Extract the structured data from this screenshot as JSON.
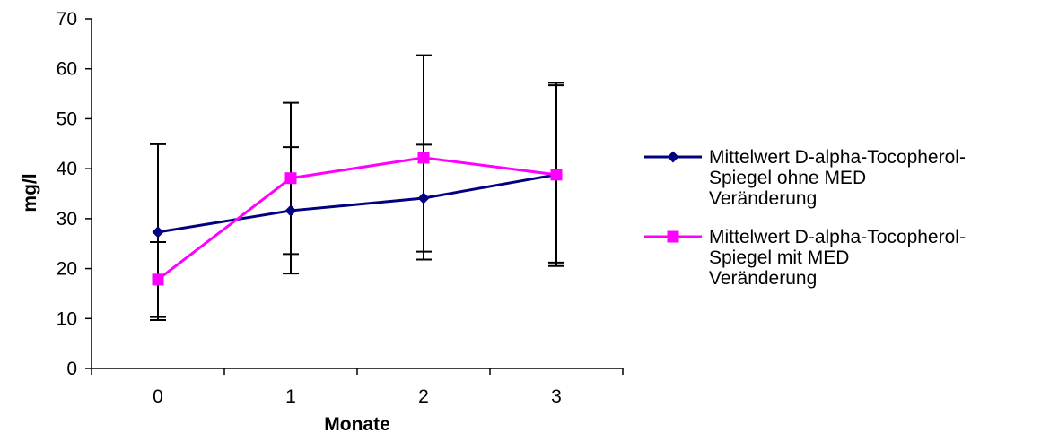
{
  "chart_data": {
    "type": "line",
    "title": "",
    "xlabel": "Monate",
    "ylabel": "mg/l",
    "categories": [
      "0",
      "1",
      "2",
      "3"
    ],
    "ylim": [
      0,
      70
    ],
    "yticks": [
      0,
      10,
      20,
      30,
      40,
      50,
      60,
      70
    ],
    "grid": false,
    "legend_position": "right",
    "series": [
      {
        "name": "Mittelwert D-alpha-Tocopherol-Spiegel ohne MED Veränderung",
        "legend_lines": [
          "Mittelwert D-alpha-Tocopherol-",
          "Spiegel ohne MED",
          "Veränderung"
        ],
        "color": "#000080",
        "marker": "diamond",
        "values": [
          27.3,
          31.6,
          34.1,
          38.8
        ],
        "error_low": [
          9.7,
          19.0,
          23.4,
          20.5
        ],
        "error_high": [
          44.9,
          44.3,
          44.8,
          57.2
        ]
      },
      {
        "name": "Mittelwert D-alpha-Tocopherol-Spiegel mit MED Veränderung",
        "legend_lines": [
          "Mittelwert D-alpha-Tocopherol-",
          "Spiegel mit MED",
          "Veränderung"
        ],
        "color": "#FF00FF",
        "marker": "square",
        "values": [
          17.8,
          38.1,
          42.2,
          38.8
        ],
        "error_low": [
          10.3,
          22.9,
          21.8,
          21.2
        ],
        "error_high": [
          25.3,
          53.2,
          62.7,
          56.7
        ]
      }
    ]
  }
}
